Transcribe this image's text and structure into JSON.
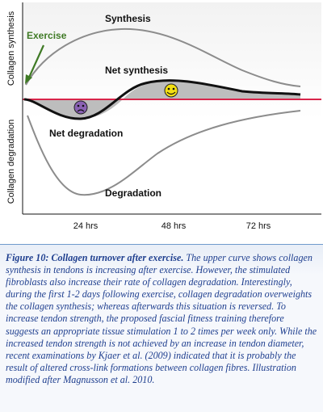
{
  "figure": {
    "y_axis_top_label": "Collagen synthesis",
    "y_axis_bottom_label": "Collagen degradation",
    "x_ticks": [
      "24 hrs",
      "48 hrs",
      "72 hrs"
    ],
    "labels": {
      "exercise": "Exercise",
      "synthesis": "Synthesis",
      "net_synthesis": "Net synthesis",
      "net_degradation": "Net degradation",
      "degradation": "Degradation"
    },
    "colors": {
      "synthesis_curve": "#8c8c8c",
      "net_curve": "#111111",
      "baseline": "#d8254a",
      "fill": "#bdbdbd",
      "arrow": "#3f7a25",
      "sad_face": "#8a62b4",
      "happy_face": "#f3e012",
      "background_gradient_top": "#f2f2f2",
      "background_gradient_bottom": "#ffffff"
    },
    "icons": [
      "sad-face-icon",
      "happy-face-icon",
      "exercise-arrow-icon"
    ]
  },
  "caption": {
    "title": "Figure 10: Collagen turnover after exercise.",
    "text": "The upper curve shows collagen synthesis in tendons is increasing after exercise. However, the stimulated fibroblasts also increase their rate of collagen degradation. Interestingly, during the first 1-2 days following exercise, collagen degradation overweights the collagen synthesis; whereas afterwards this situation is reversed. To increase tendon strength, the proposed fascial fitness training therefore suggests an appropriate tissue stimulation 1 to 2 times per week only. While the increased tendon strength is not achieved by an increase in tendon diameter, recent examinations by Kjaer et al. (2009) indicated that it is probably the result of altered cross-link formations between collagen fibres. Illustration modified after Magnusson et al. 2010."
  }
}
